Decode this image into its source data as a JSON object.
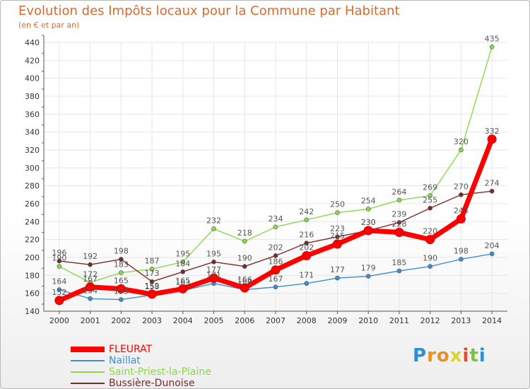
{
  "title": "Evolution des Impôts locaux pour la Commune par Habitant",
  "subtitle": "(en € et par an)",
  "brand": {
    "letters": [
      "P",
      "r",
      "o",
      "x",
      "i",
      "t",
      "i"
    ],
    "colors": [
      "#2b8fd6",
      "#e8902a",
      "#e8902a",
      "#d6d62b",
      "#e84a2a",
      "#7dc23b",
      "#2b8fd6"
    ]
  },
  "chart_data": {
    "type": "line",
    "x": [
      "2000",
      "2001",
      "2002",
      "2003",
      "2004",
      "2005",
      "2006",
      "2007",
      "2008",
      "2009",
      "2010",
      "2011",
      "2012",
      "2013",
      "2014"
    ],
    "ylim": [
      140,
      440
    ],
    "yticks": [
      140,
      160,
      180,
      200,
      220,
      240,
      260,
      280,
      300,
      320,
      340,
      360,
      380,
      400,
      420,
      440
    ],
    "grid": true,
    "series": [
      {
        "name": "Naillat",
        "color": "#3e8fd0",
        "values": [
          164,
          154,
          153,
          158,
          163,
          171,
          164,
          167,
          171,
          177,
          179,
          185,
          190,
          198,
          204
        ],
        "labels": [
          "164",
          "154",
          "153",
          "158",
          "163",
          "171",
          "164",
          "167",
          "171",
          "177",
          "179",
          "185",
          "190",
          "198",
          "204"
        ]
      },
      {
        "name": "Saint-Priest-la-Plaine",
        "color": "#8ad94a",
        "values": [
          190,
          172,
          183,
          187,
          195,
          232,
          218,
          234,
          242,
          250,
          254,
          264,
          269,
          320,
          435
        ],
        "labels": [
          "190",
          "172",
          "183",
          "187",
          "195",
          "232",
          "218",
          "234",
          "242",
          "250",
          "254",
          "264",
          "269",
          "320",
          "435"
        ]
      },
      {
        "name": "Bussière-Dunoise",
        "color": "#7a2a2a",
        "values": [
          196,
          192,
          198,
          173,
          184,
          195,
          190,
          202,
          216,
          223,
          230,
          239,
          255,
          270,
          274
        ],
        "labels": [
          "196",
          "192",
          "198",
          "173",
          "184",
          "195",
          "190",
          "202",
          "216",
          "223",
          "230",
          "239",
          "255",
          "270",
          "274"
        ]
      },
      {
        "name": "FLEURAT",
        "color": "#ff0000",
        "values": [
          152,
          167,
          165,
          159,
          165,
          177,
          166,
          186,
          202,
          215,
          230,
          228,
          220,
          243,
          332
        ],
        "labels": [
          "152",
          "167",
          "165",
          "159",
          "165",
          "177",
          "166",
          "186",
          "202",
          "215",
          "230",
          "228",
          "220",
          "243",
          "332"
        ]
      }
    ]
  }
}
